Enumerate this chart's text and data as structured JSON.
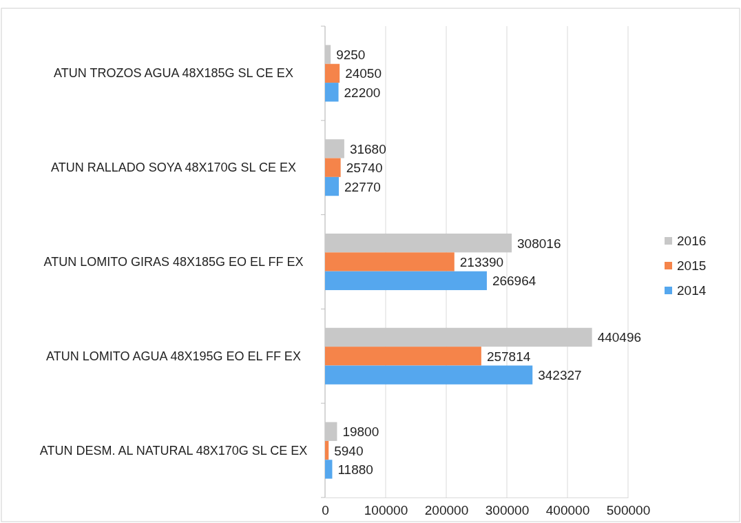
{
  "chart_data": {
    "type": "bar",
    "orientation": "horizontal",
    "categories": [
      "ATUN TROZOS AGUA 48X185G SL CE EX",
      "ATUN RALLADO SOYA 48X170G SL CE EX",
      "ATUN LOMITO GIRAS 48X185G EO EL FF EX",
      "ATUN LOMITO AGUA 48X195G EO EL FF EX",
      "ATUN DESM. AL NATURAL 48X170G SL CE EX"
    ],
    "series": [
      {
        "name": "2016",
        "color": "#c8c8c8",
        "values": [
          9250,
          31680,
          308016,
          440496,
          19800
        ]
      },
      {
        "name": "2015",
        "color": "#f5844a",
        "values": [
          24050,
          25740,
          213390,
          257814,
          5940
        ]
      },
      {
        "name": "2014",
        "color": "#55a7ee",
        "values": [
          22200,
          22770,
          266964,
          342327,
          11880
        ]
      }
    ],
    "xlim": [
      0,
      500000
    ],
    "xticks": [
      0,
      100000,
      200000,
      300000,
      400000,
      500000
    ],
    "grid": "x",
    "legend": "right",
    "data_labels": true
  }
}
